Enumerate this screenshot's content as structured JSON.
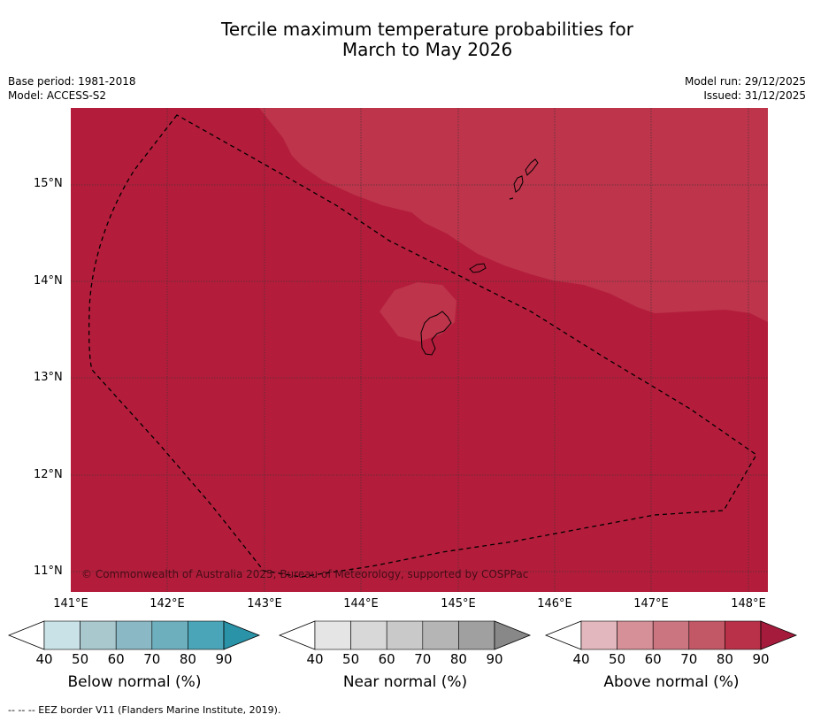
{
  "title": {
    "line1": "Tercile maximum temperature probabilities for",
    "line2": "March to May 2026"
  },
  "meta": {
    "base_period": "Base period: 1981-2018",
    "model": "Model: ACCESS-S2",
    "model_run": "Model run: 29/12/2025",
    "issued": "Issued: 31/12/2025"
  },
  "map": {
    "copyright": "© Commonwealth of Australia 2025, Bureau of Meteorology, supported by COSPPac",
    "lat_labels": [
      "15°N",
      "14°N",
      "13°N",
      "12°N",
      "11°N"
    ],
    "lon_labels": [
      "141°E",
      "142°E",
      "143°E",
      "144°E",
      "145°E",
      "146°E",
      "147°E",
      "148°E"
    ],
    "colors": {
      "above_80": "#b31d3b",
      "above_70_80": "#bd344b",
      "coast": "#000000"
    }
  },
  "colorbars": {
    "ticks": [
      "40",
      "50",
      "60",
      "70",
      "80",
      "90"
    ],
    "below": {
      "label": "Below normal (%)",
      "colors": [
        "#ffffff",
        "#c9e2e8",
        "#a8c8ce",
        "#8ab8c4",
        "#6eafbe",
        "#4aa5b8",
        "#2a93a8"
      ]
    },
    "near": {
      "label": "Near normal (%)",
      "colors": [
        "#ffffff",
        "#e5e5e5",
        "#d8d8d8",
        "#c9c9c9",
        "#b5b5b5",
        "#a0a0a0",
        "#888888"
      ]
    },
    "above": {
      "label": "Above normal (%)",
      "colors": [
        "#ffffff",
        "#e2b7bd",
        "#d69098",
        "#cb7580",
        "#c25766",
        "#b93148",
        "#a51b3c"
      ]
    }
  },
  "footer": {
    "legend_line": "--  --  -- EEZ border V11 (Flanders Marine Institute, 2019)."
  }
}
